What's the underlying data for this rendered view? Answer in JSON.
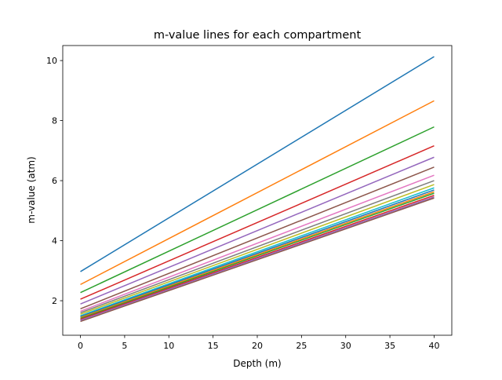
{
  "chart_data": {
    "type": "line",
    "title": "m-value lines for each compartment",
    "xlabel": "Depth (m)",
    "ylabel": "m-value (atm)",
    "xlim": [
      -2,
      42
    ],
    "ylim": [
      0.85,
      10.5
    ],
    "xticks": [
      0,
      5,
      10,
      15,
      20,
      25,
      30,
      35,
      40
    ],
    "yticks": [
      2,
      4,
      6,
      8,
      10
    ],
    "grid": false,
    "x": [
      0,
      40
    ],
    "colors": [
      "#1f77b4",
      "#ff7f0e",
      "#2ca02c",
      "#d62728",
      "#9467bd",
      "#8c564b",
      "#e377c2",
      "#7f7f7f",
      "#bcbd22",
      "#17becf"
    ],
    "series": [
      {
        "values": [
          2.97,
          10.13
        ]
      },
      {
        "values": [
          2.54,
          8.66
        ]
      },
      {
        "values": [
          2.27,
          7.79
        ]
      },
      {
        "values": [
          2.05,
          7.16
        ]
      },
      {
        "values": [
          1.89,
          6.78
        ]
      },
      {
        "values": [
          1.73,
          6.45
        ]
      },
      {
        "values": [
          1.65,
          6.18
        ]
      },
      {
        "values": [
          1.6,
          6.0
        ]
      },
      {
        "values": [
          1.55,
          5.87
        ]
      },
      {
        "values": [
          1.5,
          5.76
        ]
      },
      {
        "values": [
          1.47,
          5.69
        ]
      },
      {
        "values": [
          1.44,
          5.63
        ]
      },
      {
        "values": [
          1.41,
          5.58
        ]
      },
      {
        "values": [
          1.38,
          5.51
        ]
      },
      {
        "values": [
          1.35,
          5.46
        ]
      },
      {
        "values": [
          1.31,
          5.42
        ]
      }
    ]
  }
}
